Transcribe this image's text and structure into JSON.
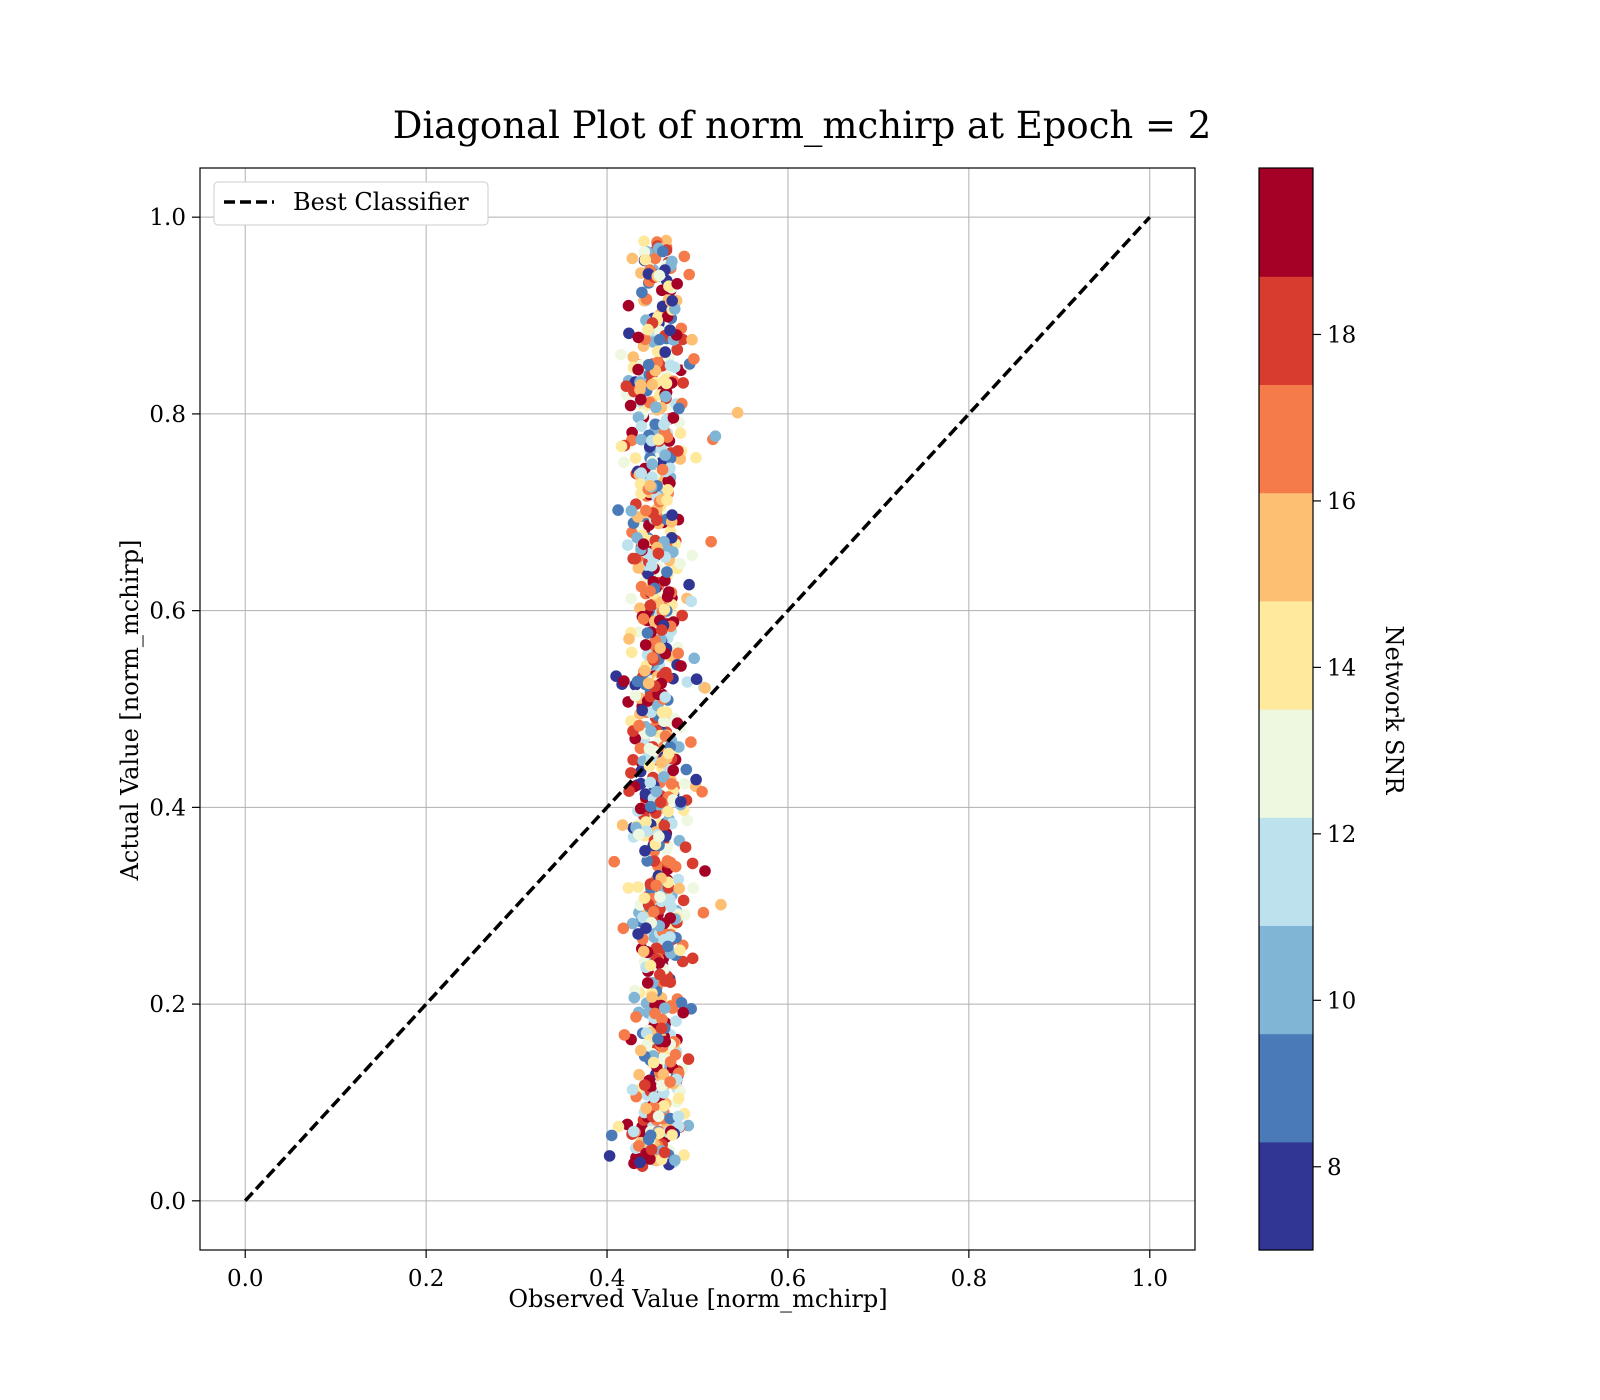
{
  "chart_data": {
    "type": "scatter",
    "title": "Diagonal Plot of norm_mchirp at Epoch = 2",
    "xlabel": "Observed Value [norm_mchirp]",
    "ylabel": "Actual Value [norm_mchirp]",
    "xlim": [
      -0.05,
      1.05
    ],
    "ylim": [
      -0.05,
      1.05
    ],
    "x_ticks": [
      "0.0",
      "0.2",
      "0.4",
      "0.6",
      "0.8",
      "1.0"
    ],
    "y_ticks": [
      "0.0",
      "0.2",
      "0.4",
      "0.6",
      "0.8",
      "1.0"
    ],
    "grid": true,
    "legend": {
      "position": "upper-left",
      "label": "Best Classifier"
    },
    "reference_line": {
      "name": "Best Classifier",
      "x": [
        0,
        1
      ],
      "y": [
        0,
        1
      ],
      "style": "dashed",
      "color": "#000000"
    },
    "colorbar": {
      "label": "Network SNR",
      "range": [
        7,
        20
      ],
      "tick_values": [
        8,
        10,
        12,
        14,
        16,
        18
      ],
      "tick_labels": [
        "8",
        "10",
        "12",
        "14",
        "16",
        "18"
      ],
      "bin_colors": [
        "#313695",
        "#4a7ab7",
        "#81b5d6",
        "#bde2ee",
        "#eef8e1",
        "#fee99d",
        "#fdbf71",
        "#f57b4a",
        "#d73c2e",
        "#a50026"
      ]
    },
    "scatter": {
      "n_points": 1000,
      "x_center": 0.455,
      "x_spread": 0.015,
      "y_range": [
        0.035,
        0.98
      ],
      "snr_range": [
        7,
        20
      ]
    }
  }
}
